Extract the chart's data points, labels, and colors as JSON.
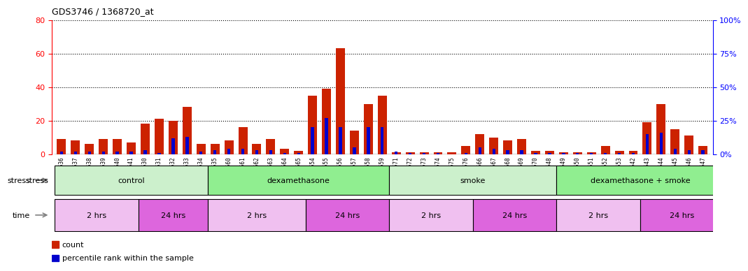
{
  "title": "GDS3746 / 1368720_at",
  "samples": [
    "GSM389536",
    "GSM389537",
    "GSM389538",
    "GSM389539",
    "GSM389540",
    "GSM389541",
    "GSM389530",
    "GSM389531",
    "GSM389532",
    "GSM389533",
    "GSM389534",
    "GSM389535",
    "GSM389560",
    "GSM389561",
    "GSM389562",
    "GSM389563",
    "GSM389564",
    "GSM389565",
    "GSM389554",
    "GSM389555",
    "GSM389556",
    "GSM389557",
    "GSM389558",
    "GSM389559",
    "GSM389571",
    "GSM389572",
    "GSM389573",
    "GSM389574",
    "GSM389575",
    "GSM389576",
    "GSM389566",
    "GSM389567",
    "GSM389568",
    "GSM389569",
    "GSM389570",
    "GSM389548",
    "GSM389549",
    "GSM389550",
    "GSM389551",
    "GSM389552",
    "GSM389553",
    "GSM389542",
    "GSM389543",
    "GSM389544",
    "GSM389545",
    "GSM389546",
    "GSM389547"
  ],
  "counts": [
    9,
    8,
    6,
    9,
    9,
    7,
    18,
    21,
    20,
    28,
    6,
    6,
    8,
    16,
    6,
    9,
    3,
    2,
    35,
    39,
    63,
    14,
    30,
    35,
    1,
    1,
    1,
    1,
    1,
    5,
    12,
    10,
    8,
    9,
    2,
    2,
    1,
    1,
    1,
    5,
    2,
    2,
    19,
    30,
    15,
    11,
    5
  ],
  "percentiles": [
    2,
    2,
    2,
    2,
    2,
    2,
    3,
    1,
    12,
    13,
    2,
    3,
    4,
    4,
    3,
    3,
    1,
    1,
    20,
    27,
    20,
    5,
    20,
    20,
    2,
    1,
    1,
    1,
    0,
    1,
    5,
    4,
    3,
    3,
    1,
    1,
    1,
    1,
    1,
    1,
    1,
    1,
    15,
    16,
    4,
    3,
    3
  ],
  "stress_groups": [
    {
      "label": "control",
      "start": 0,
      "end": 11,
      "color": "#ccf0cc"
    },
    {
      "label": "dexamethasone",
      "start": 11,
      "end": 24,
      "color": "#90ee90"
    },
    {
      "label": "smoke",
      "start": 24,
      "end": 36,
      "color": "#ccf0cc"
    },
    {
      "label": "dexamethasone + smoke",
      "start": 36,
      "end": 48,
      "color": "#90ee90"
    }
  ],
  "time_groups": [
    {
      "label": "2 hrs",
      "start": 0,
      "end": 6,
      "color": "#f0c0f0"
    },
    {
      "label": "24 hrs",
      "start": 6,
      "end": 11,
      "color": "#dd66dd"
    },
    {
      "label": "2 hrs",
      "start": 11,
      "end": 18,
      "color": "#f0c0f0"
    },
    {
      "label": "24 hrs",
      "start": 18,
      "end": 24,
      "color": "#dd66dd"
    },
    {
      "label": "2 hrs",
      "start": 24,
      "end": 30,
      "color": "#f0c0f0"
    },
    {
      "label": "24 hrs",
      "start": 30,
      "end": 36,
      "color": "#dd66dd"
    },
    {
      "label": "2 hrs",
      "start": 36,
      "end": 42,
      "color": "#f0c0f0"
    },
    {
      "label": "24 hrs",
      "start": 42,
      "end": 48,
      "color": "#dd66dd"
    }
  ],
  "bar_color": "#cc2200",
  "percentile_color": "#0000cc",
  "ylim_left": [
    0,
    80
  ],
  "ylim_right": [
    0,
    100
  ],
  "yticks_left": [
    0,
    20,
    40,
    60,
    80
  ],
  "yticks_right": [
    0,
    25,
    50,
    75,
    100
  ],
  "bg_color": "#ffffff",
  "xtick_bg": "#d8d8d8"
}
